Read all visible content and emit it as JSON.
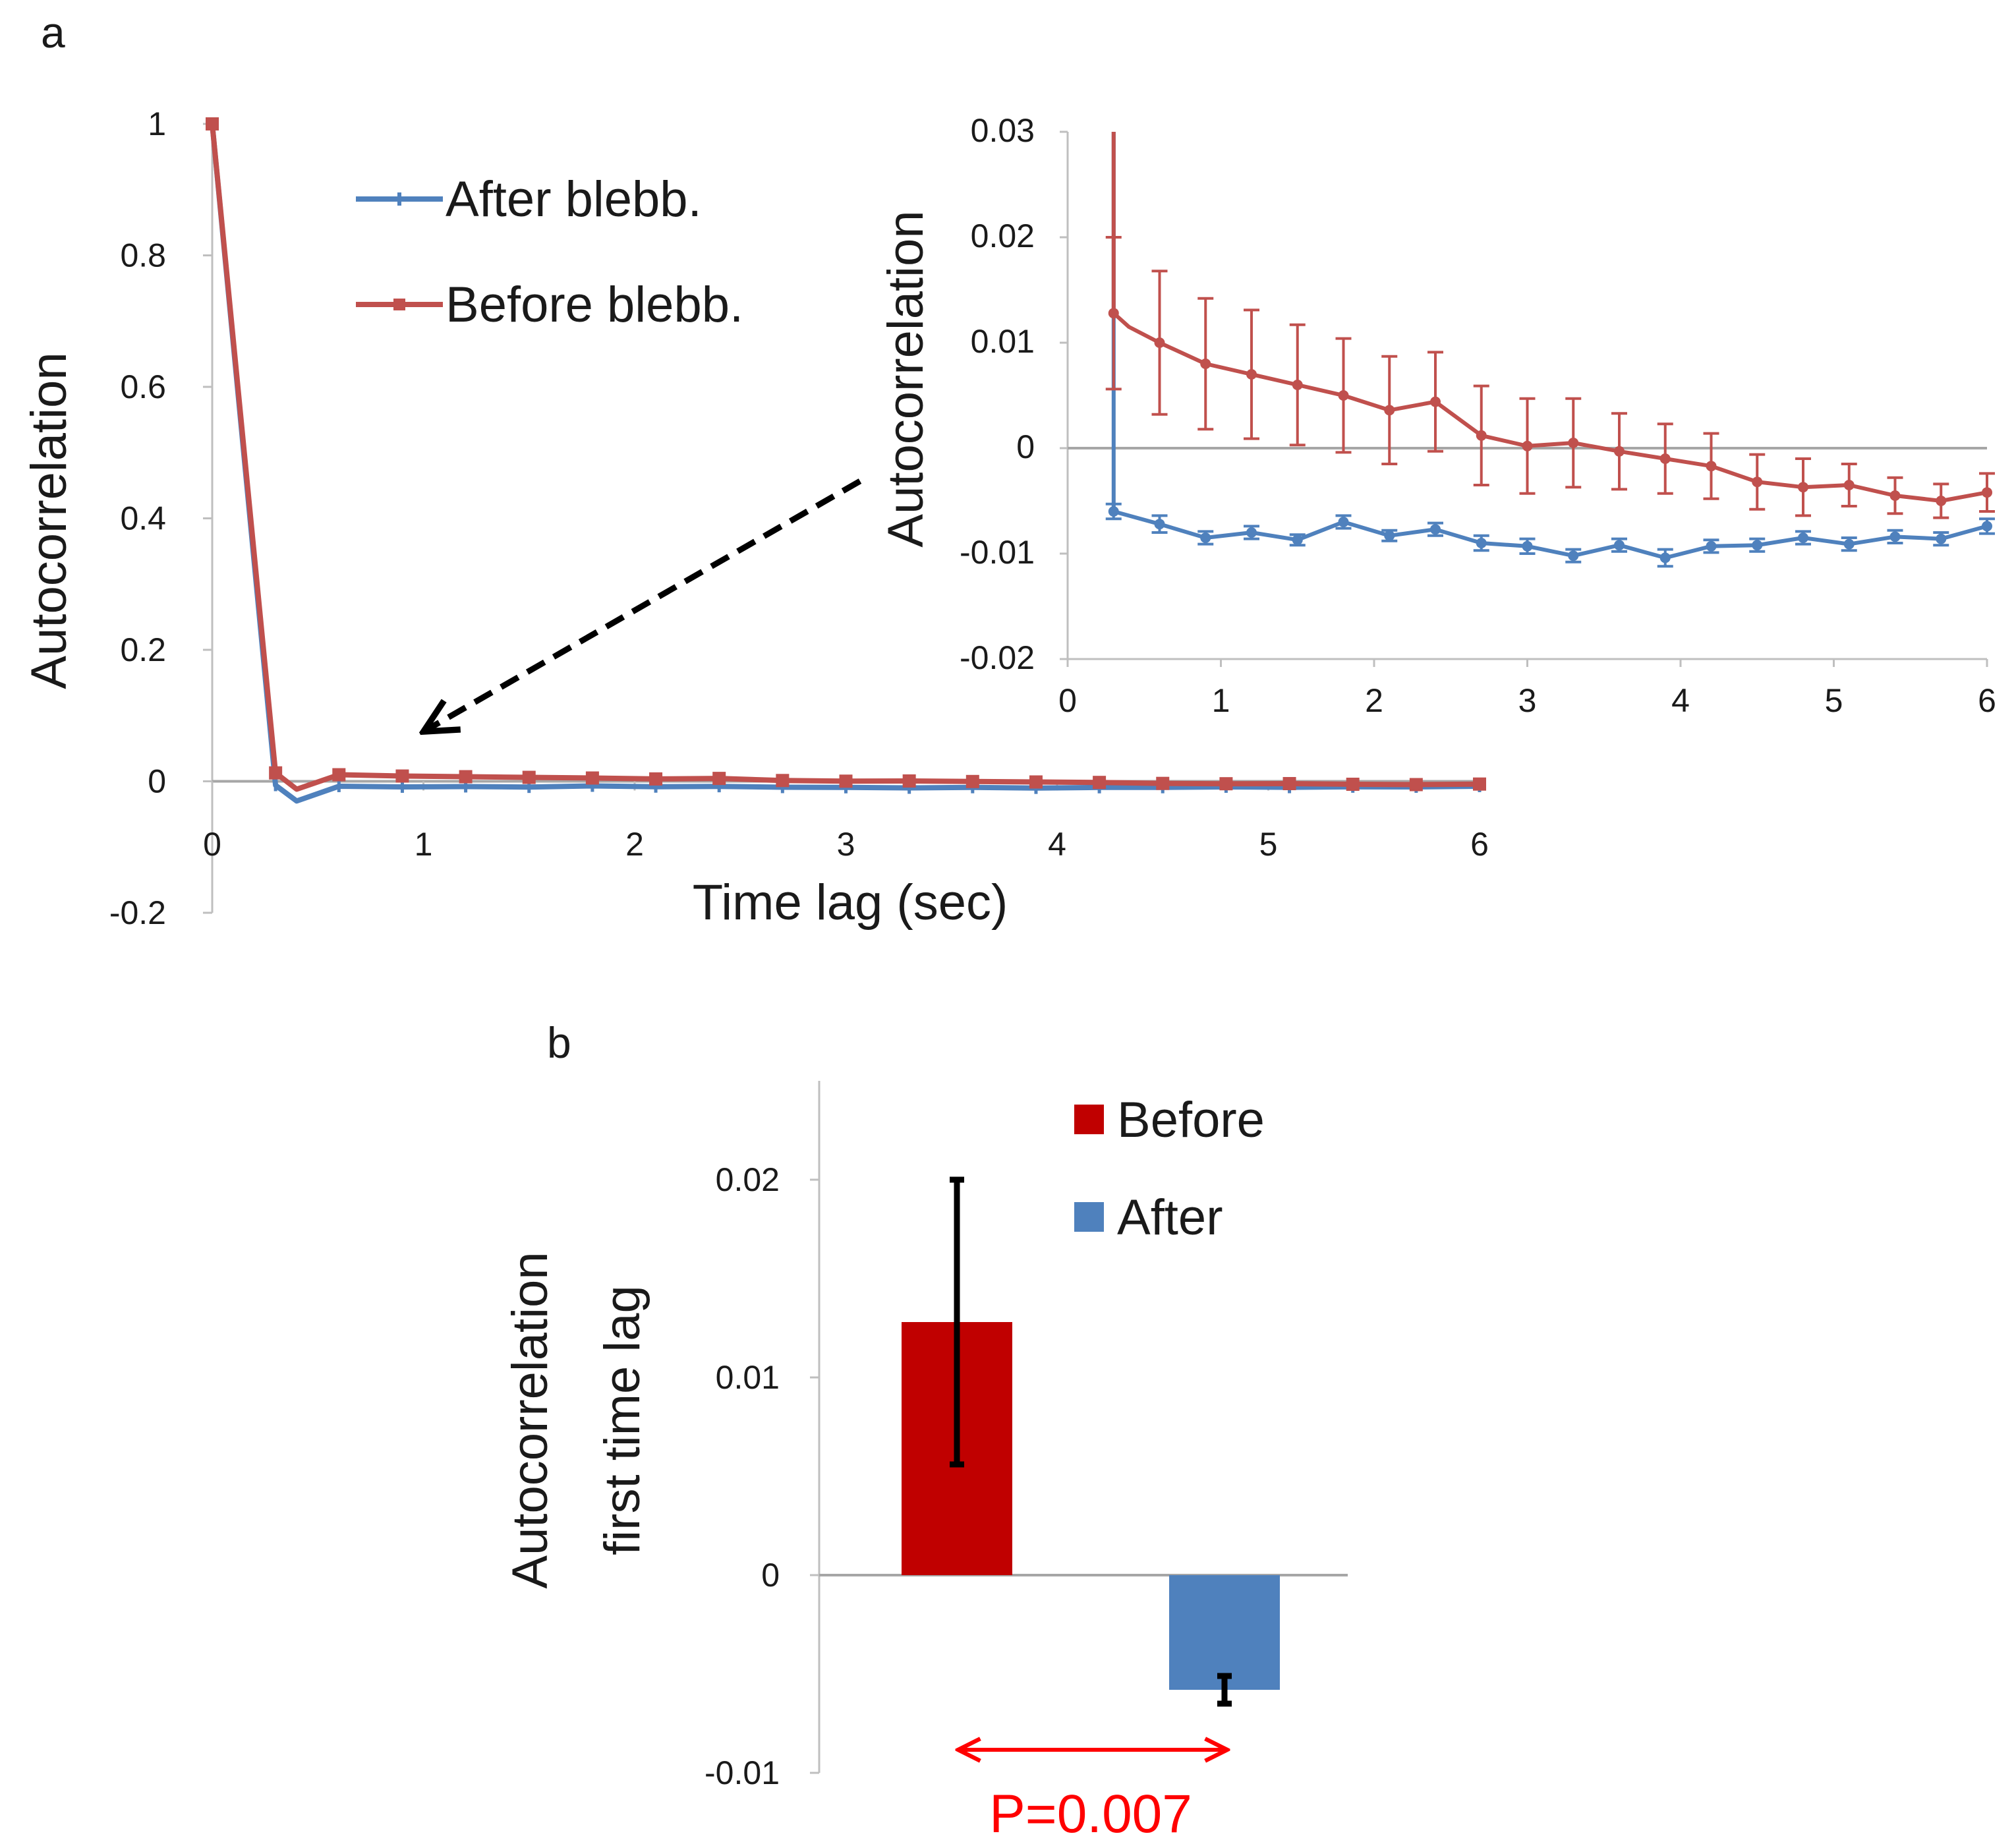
{
  "panel_labels": {
    "a": "a",
    "b": "b"
  },
  "colors": {
    "before": "#c0504d",
    "after": "#4f81bd",
    "before_bar": "#c00000",
    "after_bar": "#4f81bd",
    "pvalue": "#ff0000",
    "arrow": "#000000"
  },
  "chart_data": [
    {
      "id": "main",
      "type": "line",
      "xlabel": "Time lag (sec)",
      "ylabel": "Autocorrelation",
      "xlim": [
        0,
        6
      ],
      "ylim": [
        -0.2,
        1
      ],
      "xticks": [
        "0",
        "1",
        "2",
        "3",
        "4",
        "5",
        "6"
      ],
      "yticks": [
        "-0.2",
        "0",
        "0.2",
        "0.4",
        "0.6",
        "0.8",
        "1"
      ],
      "legend_position": "top-center",
      "series": [
        {
          "name": "After blebb.",
          "color": "#4f81bd",
          "marker": "tick",
          "x": [
            0,
            0.3,
            0.4,
            0.6,
            0.9,
            1.2,
            1.5,
            1.8,
            2.1,
            2.4,
            2.7,
            3.0,
            3.3,
            3.6,
            3.9,
            4.2,
            4.5,
            4.8,
            5.1,
            5.4,
            5.7,
            6.0
          ],
          "y": [
            1,
            -0.006,
            -0.03,
            -0.0075,
            -0.0085,
            -0.008,
            -0.0087,
            -0.007,
            -0.0083,
            -0.0077,
            -0.009,
            -0.0093,
            -0.01,
            -0.0092,
            -0.0102,
            -0.0093,
            -0.0092,
            -0.0085,
            -0.0091,
            -0.0084,
            -0.0085,
            -0.0075
          ]
        },
        {
          "name": "Before blebb.",
          "color": "#c0504d",
          "marker": "square",
          "x": [
            0,
            0.3,
            0.4,
            0.6,
            0.9,
            1.2,
            1.5,
            1.8,
            2.1,
            2.4,
            2.7,
            3.0,
            3.3,
            3.6,
            3.9,
            4.2,
            4.5,
            4.8,
            5.1,
            5.4,
            5.7,
            6.0
          ],
          "y": [
            1,
            0.0128,
            -0.012,
            0.01,
            0.008,
            0.007,
            0.006,
            0.005,
            0.0036,
            0.0044,
            0.0012,
            0.0002,
            0.0005,
            -0.0003,
            -0.001,
            -0.0017,
            -0.0032,
            -0.0037,
            -0.0035,
            -0.0045,
            -0.005,
            -0.0042
          ]
        }
      ]
    },
    {
      "id": "inset",
      "type": "line",
      "ylabel": "Autocorrelation",
      "xlim": [
        0,
        6
      ],
      "ylim": [
        -0.02,
        0.03
      ],
      "xticks": [
        "0",
        "1",
        "2",
        "3",
        "4",
        "5",
        "6"
      ],
      "yticks": [
        "-0.02",
        "-0.01",
        "0",
        "0.01",
        "0.02",
        "0.03"
      ],
      "series": [
        {
          "name": "After blebb.",
          "color": "#4f81bd",
          "x": [
            0.3,
            0.3,
            0.6,
            0.9,
            1.2,
            1.5,
            1.8,
            2.1,
            2.4,
            2.7,
            3.0,
            3.3,
            3.6,
            3.9,
            4.2,
            4.5,
            4.8,
            5.1,
            5.4,
            5.7,
            6.0
          ],
          "y": [
            0.03,
            -0.006,
            -0.0072,
            -0.0085,
            -0.008,
            -0.0087,
            -0.007,
            -0.0083,
            -0.0077,
            -0.009,
            -0.0093,
            -0.0102,
            -0.0092,
            -0.0104,
            -0.0093,
            -0.0092,
            -0.0085,
            -0.0091,
            -0.0084,
            -0.0086,
            -0.0074
          ],
          "error": [
            0,
            0.0007,
            0.0008,
            0.0006,
            0.0006,
            0.0005,
            0.0006,
            0.0005,
            0.0006,
            0.0007,
            0.0007,
            0.0006,
            0.0006,
            0.0008,
            0.0006,
            0.0006,
            0.0006,
            0.0006,
            0.0006,
            0.0006,
            0.0007
          ]
        },
        {
          "name": "Before blebb.",
          "color": "#c0504d",
          "x": [
            0.3,
            0.3,
            0.4,
            0.6,
            0.9,
            1.2,
            1.5,
            1.8,
            2.1,
            2.4,
            2.7,
            3.0,
            3.3,
            3.6,
            3.9,
            4.2,
            4.5,
            4.8,
            5.1,
            5.4,
            5.7,
            6.0
          ],
          "y": [
            0.03,
            0.0128,
            0.0115,
            0.01,
            0.008,
            0.007,
            0.006,
            0.005,
            0.0036,
            0.0044,
            0.0012,
            0.0002,
            0.0005,
            -0.0003,
            -0.001,
            -0.0017,
            -0.0032,
            -0.0037,
            -0.0035,
            -0.0045,
            -0.005,
            -0.0042
          ],
          "error": [
            0,
            0.0072,
            0,
            0.0068,
            0.0062,
            0.0061,
            0.0057,
            0.0054,
            0.0051,
            0.0047,
            0.0047,
            0.0045,
            0.0042,
            0.0036,
            0.0033,
            0.0031,
            0.0026,
            0.0027,
            0.002,
            0.0017,
            0.0016,
            0.0018
          ]
        }
      ]
    },
    {
      "id": "bar",
      "type": "bar",
      "ylabel_lines": [
        "Autocorrelation",
        "first time lag"
      ],
      "ylim": [
        -0.01,
        0.025
      ],
      "yticks": [
        "-0.01",
        "0",
        "0.01",
        "0.02"
      ],
      "categories": [
        "Before",
        "After"
      ],
      "values": [
        0.0128,
        -0.0058
      ],
      "errors": [
        0.0072,
        0.0007
      ],
      "colors": [
        "#c00000",
        "#4f81bd"
      ],
      "legend_position": "top-right",
      "annotation": "P=0.007"
    }
  ]
}
